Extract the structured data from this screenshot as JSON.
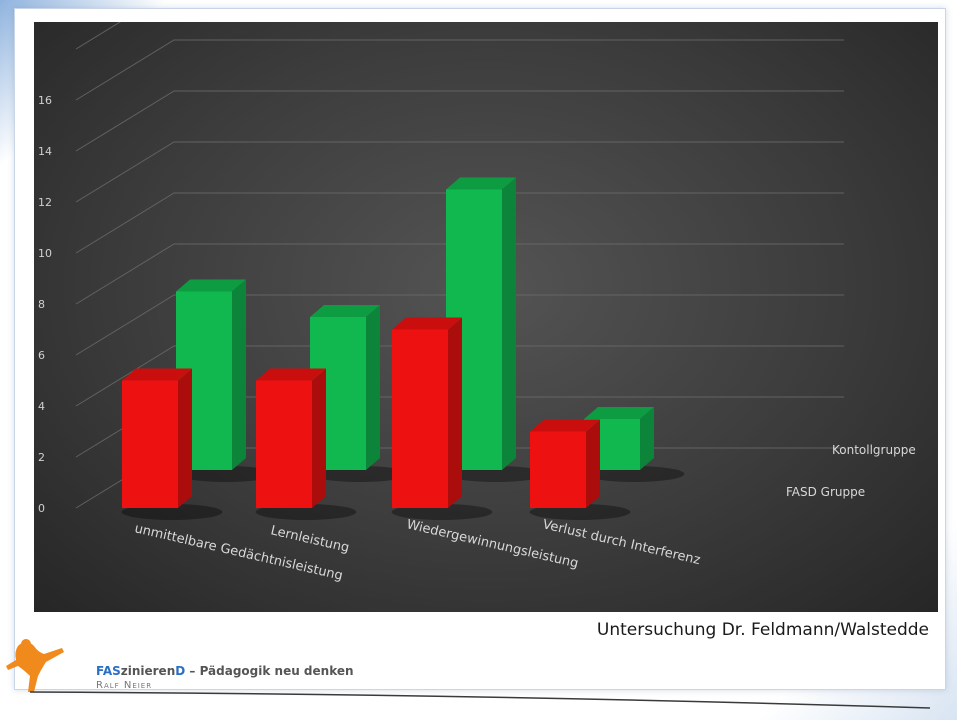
{
  "caption": "Untersuchung Dr. Feldmann/Walstedde",
  "footer": {
    "brand_part1": "FAS",
    "brand_part2": "zinieren",
    "brand_part3": "D",
    "brand_rest": " – Pädagogik neu denken",
    "author": "Ralf Neier"
  },
  "colors": {
    "fasd": "#ee1111",
    "kontroll": "#11b84f",
    "accent": "#2a6fc2"
  },
  "chart_data": {
    "type": "bar",
    "categories": [
      "unmittelbare Gedächtnisleistung",
      "Lernleistung",
      "Wiedergewinnungsleistung",
      "Verlust durch Interferenz"
    ],
    "series": [
      {
        "name": "FASD Gruppe",
        "values": [
          5,
          5,
          7,
          3
        ]
      },
      {
        "name": "Kontollgruppe",
        "values": [
          7,
          6,
          11,
          2
        ]
      }
    ],
    "yticks": [
      0,
      2,
      4,
      6,
      8,
      10,
      12,
      14,
      16
    ],
    "ylim": [
      0,
      18
    ],
    "grid": true,
    "legend": "right"
  }
}
